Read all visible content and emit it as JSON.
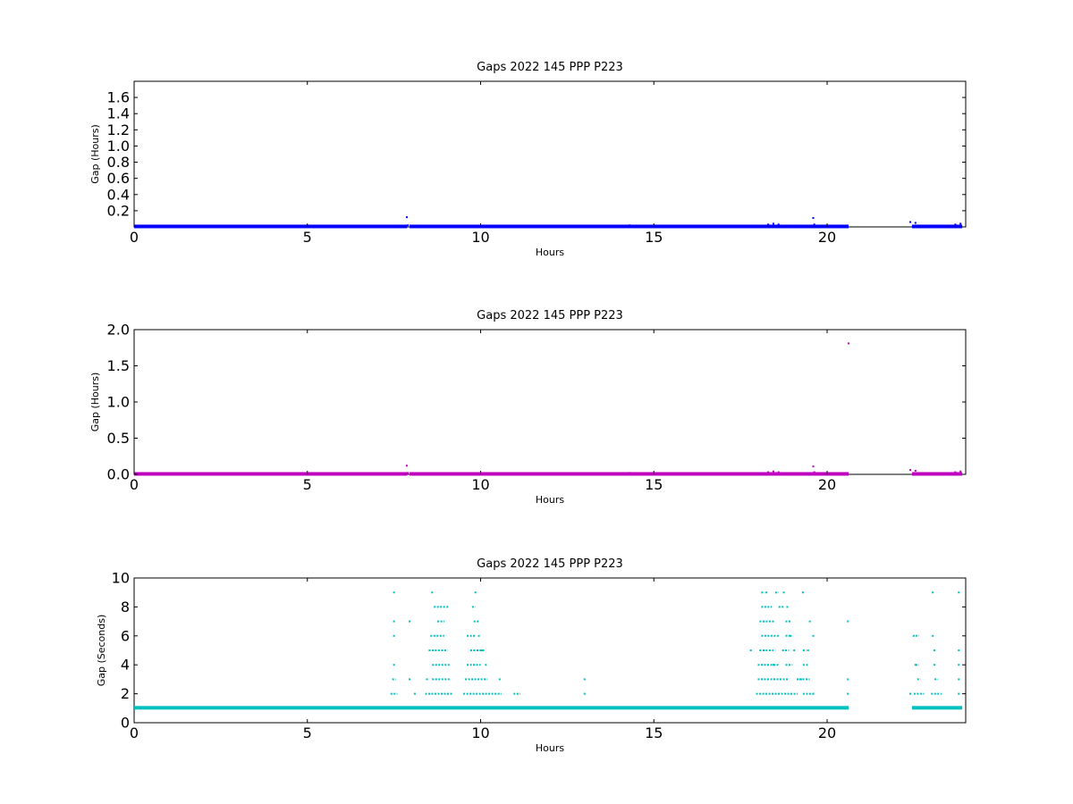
{
  "chart_data": [
    {
      "type": "scatter",
      "title": "Gaps 2022 145 PPP  P223",
      "xlabel": "Hours",
      "ylabel": "Gap (Hours)",
      "xlim": [
        0,
        24
      ],
      "ylim": [
        0,
        1.8
      ],
      "xticks": [
        0,
        5,
        10,
        15,
        20
      ],
      "yticks": [
        0.2,
        0.4,
        0.6,
        0.8,
        1.0,
        1.2,
        1.4,
        1.6
      ],
      "ytick_labels": [
        "0.2",
        "0.4",
        "0.6",
        "0.8",
        "1.0",
        "1.2",
        "1.4",
        "1.6"
      ],
      "color": "#0000ff",
      "series": [
        {
          "baseline_value": 0.0003,
          "baseline_segments": [
            [
              0,
              7.88
            ],
            [
              7.95,
              20.62
            ],
            [
              22.45,
              23.9
            ]
          ],
          "points": [
            [
              7.87,
              0.12
            ],
            [
              7.9,
              0.02
            ],
            [
              14.3,
              0.02
            ],
            [
              18.3,
              0.03
            ],
            [
              18.45,
              0.04
            ],
            [
              18.6,
              0.03
            ],
            [
              19.6,
              0.11
            ],
            [
              19.63,
              0.03
            ],
            [
              22.4,
              0.06
            ],
            [
              22.55,
              0.05
            ],
            [
              23.7,
              0.03
            ],
            [
              23.85,
              0.04
            ]
          ]
        }
      ]
    },
    {
      "type": "scatter",
      "title": "Gaps 2022 145 PPP  P223",
      "xlabel": "Hours",
      "ylabel": "Gap (Hours)",
      "xlim": [
        0,
        24
      ],
      "ylim": [
        0,
        2.0
      ],
      "xticks": [
        0,
        5,
        10,
        15,
        20
      ],
      "yticks": [
        0.0,
        0.5,
        1.0,
        1.5,
        2.0
      ],
      "ytick_labels": [
        "0.0",
        "0.5",
        "1.0",
        "1.5",
        "2.0"
      ],
      "color": "#bf00bf",
      "series": [
        {
          "baseline_value": 0.0003,
          "baseline_segments": [
            [
              0,
              7.88
            ],
            [
              7.95,
              20.62
            ],
            [
              22.45,
              23.9
            ]
          ],
          "points": [
            [
              7.87,
              0.12
            ],
            [
              7.9,
              0.02
            ],
            [
              14.3,
              0.02
            ],
            [
              18.3,
              0.03
            ],
            [
              18.45,
              0.04
            ],
            [
              18.6,
              0.03
            ],
            [
              19.6,
              0.11
            ],
            [
              19.63,
              0.03
            ],
            [
              20.62,
              1.81
            ],
            [
              22.4,
              0.06
            ],
            [
              22.55,
              0.05
            ],
            [
              23.7,
              0.03
            ],
            [
              23.85,
              0.04
            ]
          ]
        }
      ]
    },
    {
      "type": "scatter",
      "title": "Gaps 2022 145 PPP  P223",
      "xlabel": "Hours",
      "ylabel": "Gap (Seconds)",
      "xlim": [
        0,
        24
      ],
      "ylim": [
        0,
        10
      ],
      "xticks": [
        0,
        5,
        10,
        15,
        20
      ],
      "yticks": [
        0,
        2,
        4,
        6,
        8,
        10
      ],
      "ytick_labels": [
        "0",
        "2",
        "4",
        "6",
        "8",
        "10"
      ],
      "color": "#00bfbf",
      "series": [
        {
          "baseline_value": 1,
          "baseline_segments": [
            [
              0,
              20.62
            ],
            [
              22.45,
              23.9
            ]
          ],
          "rows": [
            {
              "y": 2,
              "segments": [
                [
                  7.4,
                  7.6
                ],
                [
                  8.4,
                  9.2
                ],
                [
                  9.5,
                  10.6
                ],
                [
                  10.95,
                  11.15
                ],
                [
                  17.95,
                  19.15
                ],
                [
                  19.3,
                  19.65
                ],
                [
                  22.5,
                  22.8
                ],
                [
                  23.0,
                  23.3
                ]
              ]
            },
            {
              "y": 3,
              "segments": [
                [
                  7.45,
                  7.55
                ],
                [
                  8.6,
                  9.1
                ],
                [
                  9.55,
                  10.2
                ],
                [
                  18.0,
                  18.9
                ],
                [
                  19.2,
                  19.5
                ],
                [
                  22.6,
                  22.7
                ],
                [
                  23.1,
                  23.2
                ]
              ]
            },
            {
              "y": 4,
              "segments": [
                [
                  8.6,
                  9.1
                ],
                [
                  9.6,
                  10.0
                ],
                [
                  18.0,
                  18.6
                ],
                [
                  18.8,
                  19.0
                ],
                [
                  19.3,
                  19.45
                ],
                [
                  22.55,
                  22.65
                ]
              ]
            },
            {
              "y": 5,
              "segments": [
                [
                  8.5,
                  9.05
                ],
                [
                  9.7,
                  10.1
                ],
                [
                  18.05,
                  18.45
                ],
                [
                  18.7,
                  18.9
                ],
                [
                  19.3,
                  19.4
                ]
              ]
            },
            {
              "y": 6,
              "segments": [
                [
                  8.55,
                  8.95
                ],
                [
                  9.6,
                  9.85
                ],
                [
                  18.1,
                  18.6
                ],
                [
                  18.8,
                  18.95
                ],
                [
                  22.55,
                  22.65
                ]
              ]
            },
            {
              "y": 7,
              "segments": [
                [
                  8.75,
                  8.95
                ],
                [
                  9.8,
                  9.95
                ],
                [
                  18.05,
                  18.5
                ],
                [
                  18.8,
                  18.95
                ]
              ]
            },
            {
              "y": 8,
              "segments": [
                [
                  8.65,
                  9.1
                ],
                [
                  9.75,
                  9.85
                ],
                [
                  18.1,
                  18.4
                ],
                [
                  18.6,
                  18.75
                ]
              ]
            },
            {
              "y": 9,
              "segments": [
                [
                  18.1,
                  18.2
                ],
                [
                  18.5,
                  18.6
                ]
              ]
            }
          ],
          "points": [
            [
              7.5,
              9
            ],
            [
              7.5,
              7
            ],
            [
              7.5,
              6
            ],
            [
              7.5,
              4
            ],
            [
              7.95,
              7
            ],
            [
              7.95,
              3
            ],
            [
              8.1,
              2
            ],
            [
              8.45,
              3
            ],
            [
              8.6,
              9
            ],
            [
              9.85,
              9
            ],
            [
              9.95,
              6
            ],
            [
              10.05,
              5
            ],
            [
              10.15,
              4
            ],
            [
              10.55,
              3
            ],
            [
              13.0,
              3
            ],
            [
              13.0,
              2
            ],
            [
              17.8,
              5
            ],
            [
              18.25,
              9
            ],
            [
              18.45,
              4
            ],
            [
              18.75,
              9
            ],
            [
              18.85,
              8
            ],
            [
              18.95,
              6
            ],
            [
              19.05,
              5
            ],
            [
              19.15,
              3
            ],
            [
              19.25,
              3
            ],
            [
              19.3,
              9
            ],
            [
              19.45,
              5
            ],
            [
              19.5,
              7
            ],
            [
              19.6,
              6
            ],
            [
              19.6,
              2
            ],
            [
              20.6,
              7
            ],
            [
              20.6,
              3
            ],
            [
              20.6,
              2
            ],
            [
              22.4,
              2
            ],
            [
              22.5,
              6
            ],
            [
              22.55,
              4
            ],
            [
              23.05,
              9
            ],
            [
              23.05,
              6
            ],
            [
              23.1,
              5
            ],
            [
              23.1,
              4
            ],
            [
              23.8,
              9
            ],
            [
              23.8,
              5
            ],
            [
              23.8,
              4
            ],
            [
              23.8,
              3
            ],
            [
              23.8,
              2
            ]
          ]
        }
      ]
    }
  ]
}
